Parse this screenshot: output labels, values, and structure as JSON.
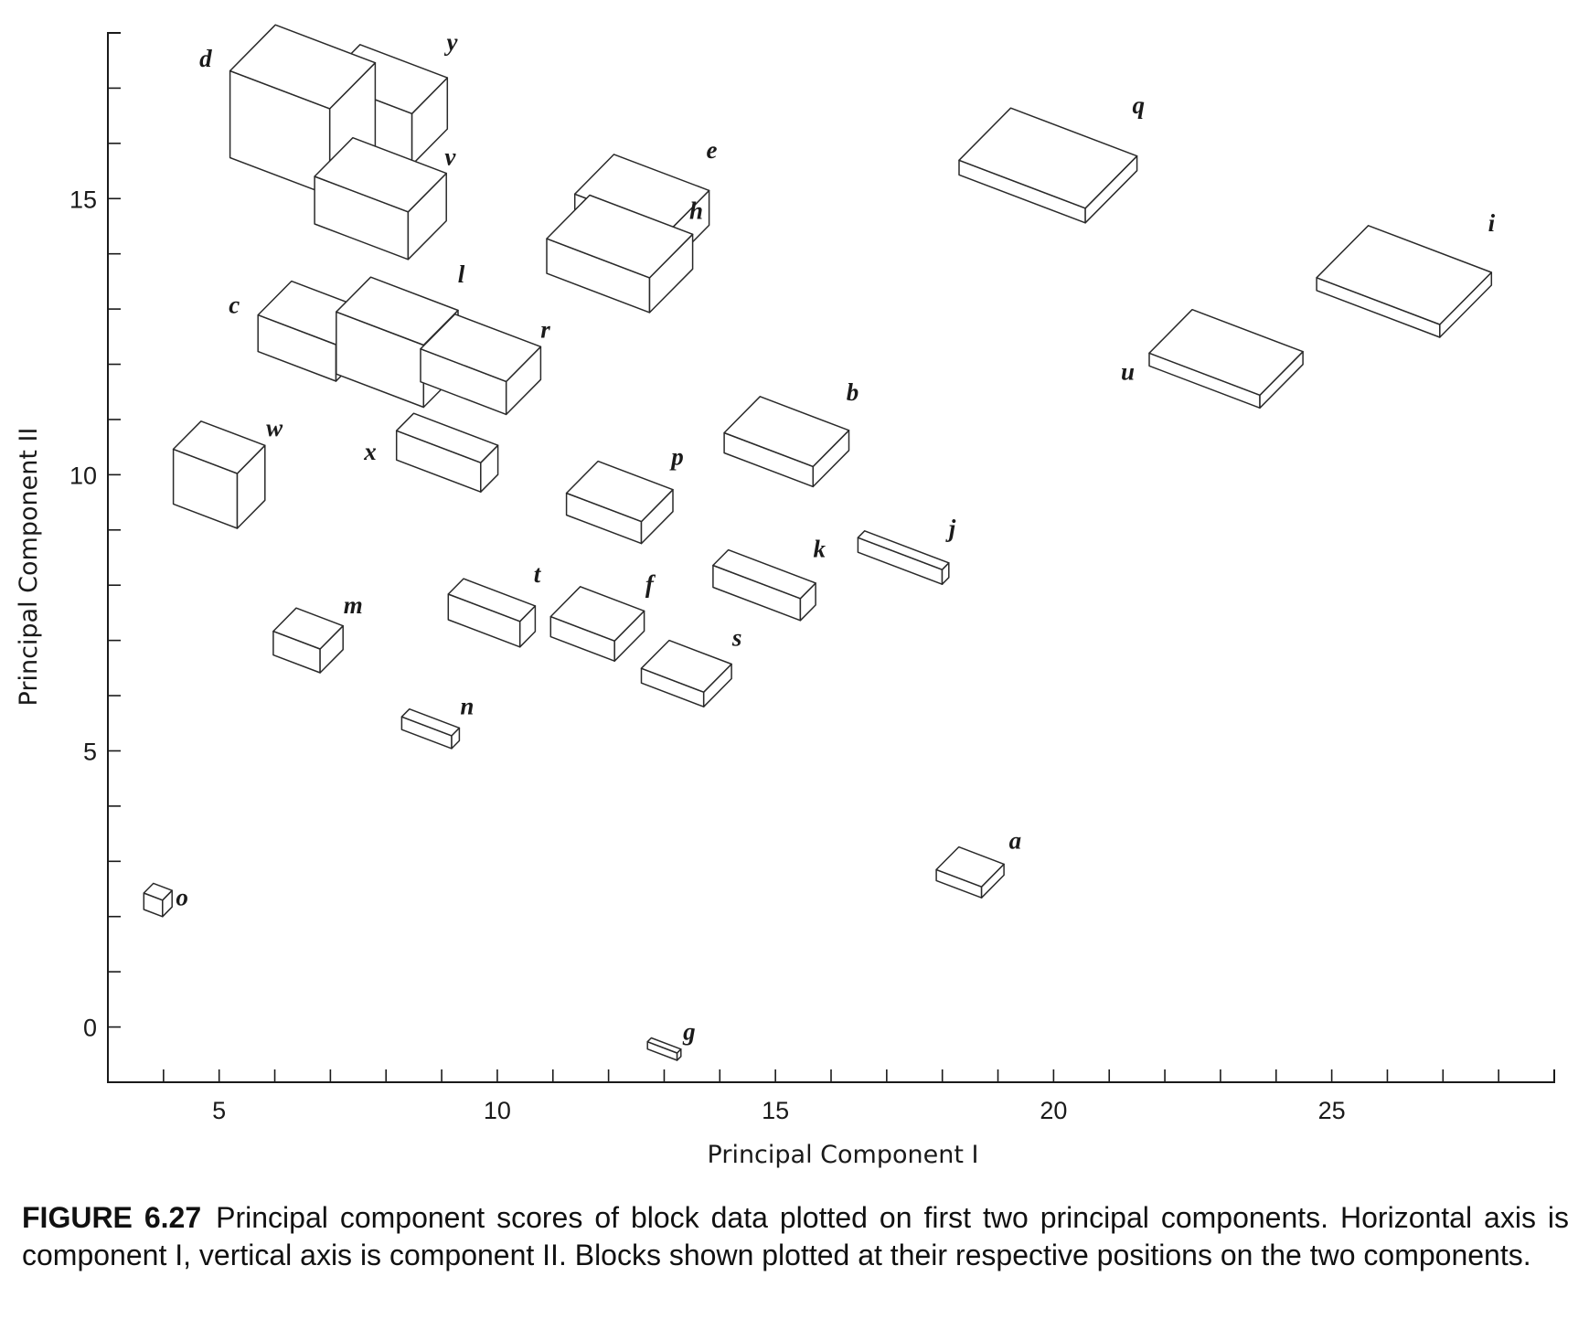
{
  "chart_data": {
    "type": "scatter",
    "marker": "3d-block",
    "xlabel": "Principal Component I",
    "ylabel": "Principal Component II",
    "xlim": [
      3,
      29
    ],
    "ylim": [
      -1,
      18
    ],
    "xticks_labeled": [
      5,
      10,
      15,
      20,
      25
    ],
    "yticks_labeled": [
      0,
      5,
      10,
      15
    ],
    "minor_tick_step": 1,
    "grid": false,
    "points": [
      {
        "label": "a",
        "x": 18.5,
        "y": 2.8
      },
      {
        "label": "b",
        "x": 15.2,
        "y": 10.6
      },
      {
        "label": "c",
        "x": 6.7,
        "y": 12.6
      },
      {
        "label": "d",
        "x": 6.5,
        "y": 16.6
      },
      {
        "label": "e",
        "x": 12.6,
        "y": 14.8
      },
      {
        "label": "f",
        "x": 11.8,
        "y": 7.3
      },
      {
        "label": "g",
        "x": 13.0,
        "y": -0.4
      },
      {
        "label": "h",
        "x": 12.2,
        "y": 14.0
      },
      {
        "label": "i",
        "x": 26.3,
        "y": 13.5
      },
      {
        "label": "j",
        "x": 17.3,
        "y": 8.5
      },
      {
        "label": "k",
        "x": 14.8,
        "y": 8.0
      },
      {
        "label": "l",
        "x": 8.2,
        "y": 12.4
      },
      {
        "label": "m",
        "x": 6.6,
        "y": 7.0
      },
      {
        "label": "n",
        "x": 8.8,
        "y": 5.4
      },
      {
        "label": "o",
        "x": 3.9,
        "y": 2.3
      },
      {
        "label": "p",
        "x": 12.2,
        "y": 9.5
      },
      {
        "label": "q",
        "x": 19.9,
        "y": 15.6
      },
      {
        "label": "r",
        "x": 9.7,
        "y": 12.0
      },
      {
        "label": "s",
        "x": 13.4,
        "y": 6.4
      },
      {
        "label": "t",
        "x": 9.9,
        "y": 7.5
      },
      {
        "label": "u",
        "x": 23.1,
        "y": 12.1
      },
      {
        "label": "v",
        "x": 7.9,
        "y": 15.0
      },
      {
        "label": "w",
        "x": 5.0,
        "y": 10.0
      },
      {
        "label": "x",
        "x": 9.1,
        "y": 10.4
      },
      {
        "label": "y",
        "x": 8.0,
        "y": 16.7
      }
    ]
  },
  "caption": {
    "figure_number": "FIGURE 6.27",
    "text": "Principal component scores of block data plotted on first two principal components. Horizontal axis is component I, vertical axis is component II. Blocks shown plotted at their respective positions on the two components."
  }
}
